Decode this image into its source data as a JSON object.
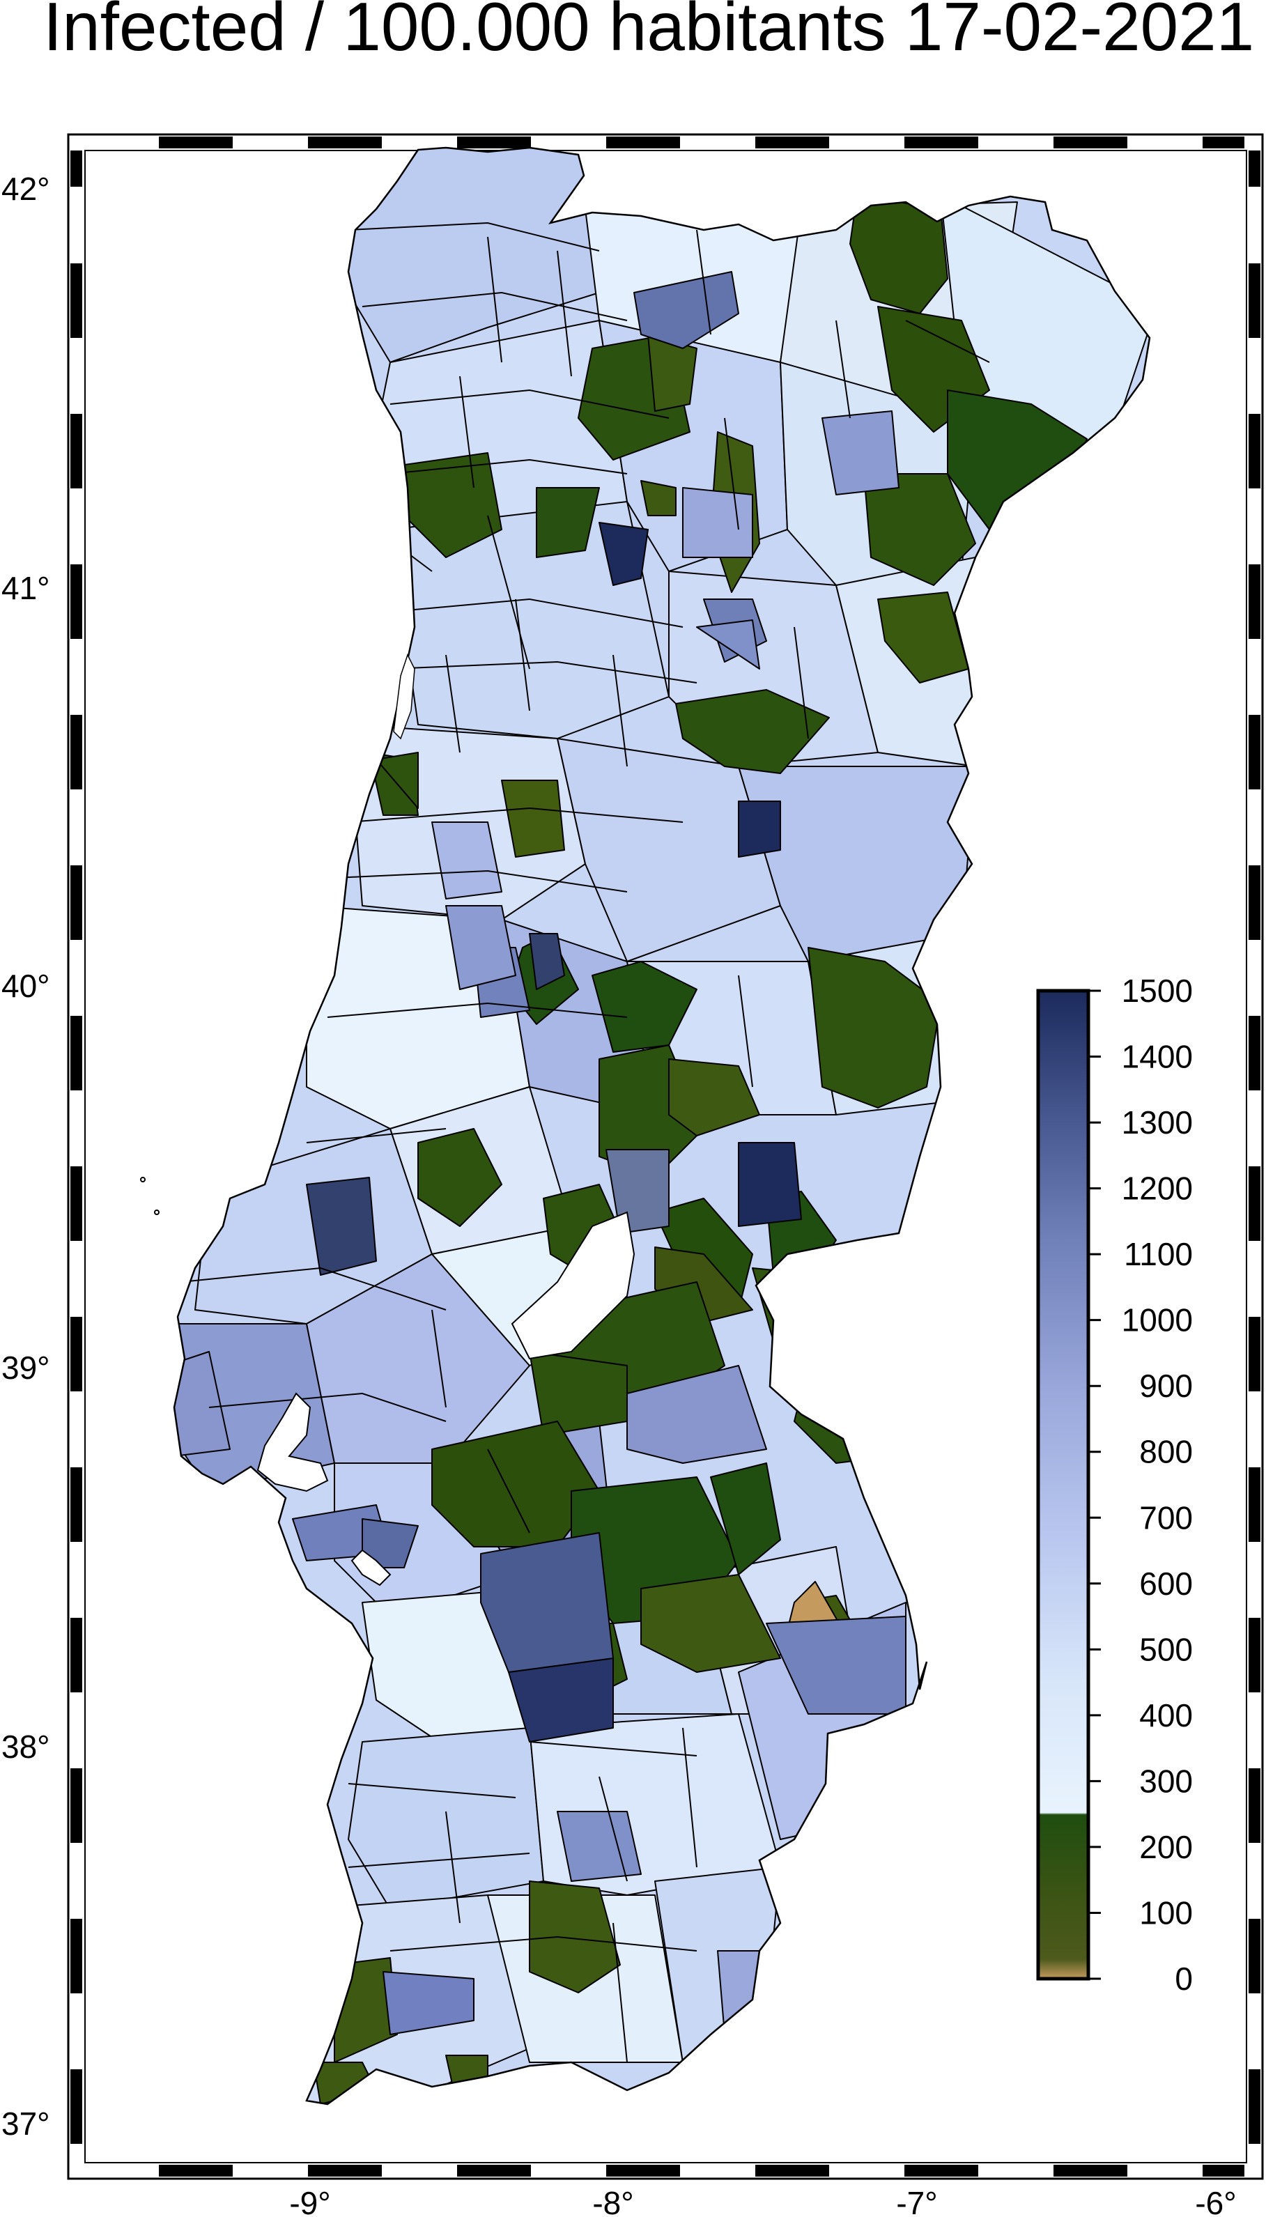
{
  "title": "Infected / 100.000 habitants 17-02-2021",
  "axes": {
    "x_ticks": [
      "-9°",
      "-8°",
      "-7°",
      "-6°"
    ],
    "y_ticks": [
      "42°",
      "41°",
      "40°",
      "39°",
      "38°",
      "37°"
    ]
  },
  "colorbar": {
    "ticks": [
      "1500",
      "1400",
      "1300",
      "1200",
      "1100",
      "1000",
      "900",
      "800",
      "700",
      "600",
      "500",
      "400",
      "300",
      "200",
      "100",
      "0"
    ],
    "range": [
      0,
      1500
    ],
    "colors": {
      "low": "#c49a5e",
      "olive": "#3e5a12",
      "green": "#1f4e10",
      "pale": "#e6f2fc",
      "light": "#c3d3f3",
      "mid": "#9aa8dc",
      "steel": "#7282bc",
      "dark": "#4a5b92",
      "navy": "#1c2a5c"
    }
  }
}
